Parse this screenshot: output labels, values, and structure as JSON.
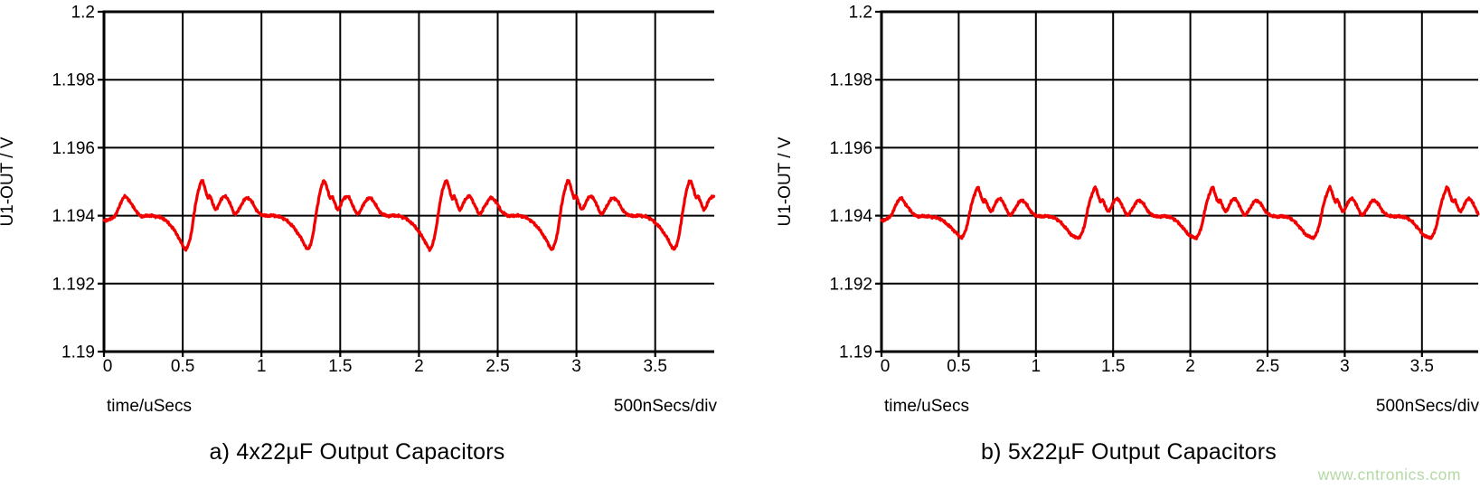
{
  "watermark": {
    "text": "www.cntronics.com",
    "color": "#b5d8a6"
  },
  "axis_color": "#000000",
  "chart_data": [
    {
      "type": "line",
      "title": "a) 4x22µF Output Capacitors",
      "ylabel": "U1-OUT / V",
      "xlabel": "time/uSecs",
      "x_scale_label": "500nSecs/div",
      "xlim": [
        0,
        3.87
      ],
      "ylim": [
        1.19,
        1.2
      ],
      "grid": true,
      "x_ticks": [
        0,
        0.5,
        1,
        1.5,
        2,
        2.5,
        3,
        3.5
      ],
      "x_tick_labels": [
        "0",
        "0.5",
        "1",
        "1.5",
        "2",
        "2.5",
        "3",
        "3.5"
      ],
      "y_ticks": [
        1.19,
        1.192,
        1.194,
        1.196,
        1.198,
        1.2
      ],
      "y_tick_labels": [
        "1.19",
        "1.192",
        "1.194",
        "1.196",
        "1.198",
        "1.2"
      ],
      "series": [
        {
          "name": "U1-OUT",
          "color": "#f20000",
          "baseline_v": 1.194,
          "peak_v": 1.195,
          "trough_v": 1.193,
          "ripple_period_us": 0.775,
          "first_trough_us": 0.52,
          "lead_in_points": [
            [
              0.0,
              1.19385
            ],
            [
              0.07,
              1.194
            ],
            [
              0.13,
              1.19455
            ],
            [
              0.18,
              1.1943
            ],
            [
              0.23,
              1.194
            ],
            [
              0.3,
              1.194
            ],
            [
              0.38,
              1.1939
            ],
            [
              0.45,
              1.19355
            ],
            [
              0.52,
              1.193
            ]
          ],
          "cycle_points": [
            [
              0.0,
              1.193
            ],
            [
              0.03,
              1.1934
            ],
            [
              0.065,
              1.1944
            ],
            [
              0.09,
              1.1949
            ],
            [
              0.105,
              1.19502
            ],
            [
              0.122,
              1.1948
            ],
            [
              0.14,
              1.19452
            ],
            [
              0.152,
              1.19458
            ],
            [
              0.168,
              1.1944
            ],
            [
              0.19,
              1.19418
            ],
            [
              0.225,
              1.19448
            ],
            [
              0.255,
              1.19456
            ],
            [
              0.285,
              1.1943
            ],
            [
              0.315,
              1.19405
            ],
            [
              0.35,
              1.1943
            ],
            [
              0.385,
              1.19452
            ],
            [
              0.42,
              1.1944
            ],
            [
              0.455,
              1.19412
            ],
            [
              0.5,
              1.194
            ],
            [
              0.56,
              1.194
            ],
            [
              0.62,
              1.19392
            ],
            [
              0.68,
              1.19368
            ],
            [
              0.73,
              1.19335
            ],
            [
              0.775,
              1.193
            ]
          ],
          "noise_v": 3e-05
        }
      ]
    },
    {
      "type": "line",
      "title": "b) 5x22µF Output Capacitors",
      "ylabel": "U1-OUT / V",
      "xlabel": "time/uSecs",
      "x_scale_label": "500nSecs/div",
      "xlim": [
        0,
        3.87
      ],
      "ylim": [
        1.19,
        1.2
      ],
      "grid": true,
      "x_ticks": [
        0,
        0.5,
        1,
        1.5,
        2,
        2.5,
        3,
        3.5
      ],
      "x_tick_labels": [
        "0",
        "0.5",
        "1",
        "1.5",
        "2",
        "2.5",
        "3",
        "3.5"
      ],
      "y_ticks": [
        1.19,
        1.192,
        1.194,
        1.196,
        1.198,
        1.2
      ],
      "y_tick_labels": [
        "1.19",
        "1.192",
        "1.194",
        "1.196",
        "1.198",
        "1.2"
      ],
      "series": [
        {
          "name": "U1-OUT",
          "color": "#f20000",
          "baseline_v": 1.194,
          "peak_v": 1.1948,
          "trough_v": 1.1933,
          "ripple_period_us": 0.76,
          "first_trough_us": 0.52,
          "lead_in_points": [
            [
              0.0,
              1.19385
            ],
            [
              0.06,
              1.194
            ],
            [
              0.12,
              1.1945
            ],
            [
              0.17,
              1.19425
            ],
            [
              0.22,
              1.194
            ],
            [
              0.3,
              1.19398
            ],
            [
              0.38,
              1.1939
            ],
            [
              0.45,
              1.19365
            ],
            [
              0.52,
              1.19335
            ]
          ],
          "cycle_points": [
            [
              0.0,
              1.19335
            ],
            [
              0.03,
              1.19365
            ],
            [
              0.065,
              1.19435
            ],
            [
              0.09,
              1.1947
            ],
            [
              0.105,
              1.19482
            ],
            [
              0.122,
              1.19462
            ],
            [
              0.14,
              1.1944
            ],
            [
              0.152,
              1.19446
            ],
            [
              0.168,
              1.1943
            ],
            [
              0.19,
              1.19412
            ],
            [
              0.225,
              1.19442
            ],
            [
              0.255,
              1.19448
            ],
            [
              0.285,
              1.19422
            ],
            [
              0.315,
              1.19402
            ],
            [
              0.35,
              1.19425
            ],
            [
              0.385,
              1.19445
            ],
            [
              0.42,
              1.19432
            ],
            [
              0.455,
              1.19408
            ],
            [
              0.5,
              1.19398
            ],
            [
              0.56,
              1.19398
            ],
            [
              0.615,
              1.1939
            ],
            [
              0.665,
              1.19368
            ],
            [
              0.715,
              1.19342
            ],
            [
              0.76,
              1.19335
            ]
          ],
          "noise_v": 3e-05
        }
      ]
    }
  ]
}
